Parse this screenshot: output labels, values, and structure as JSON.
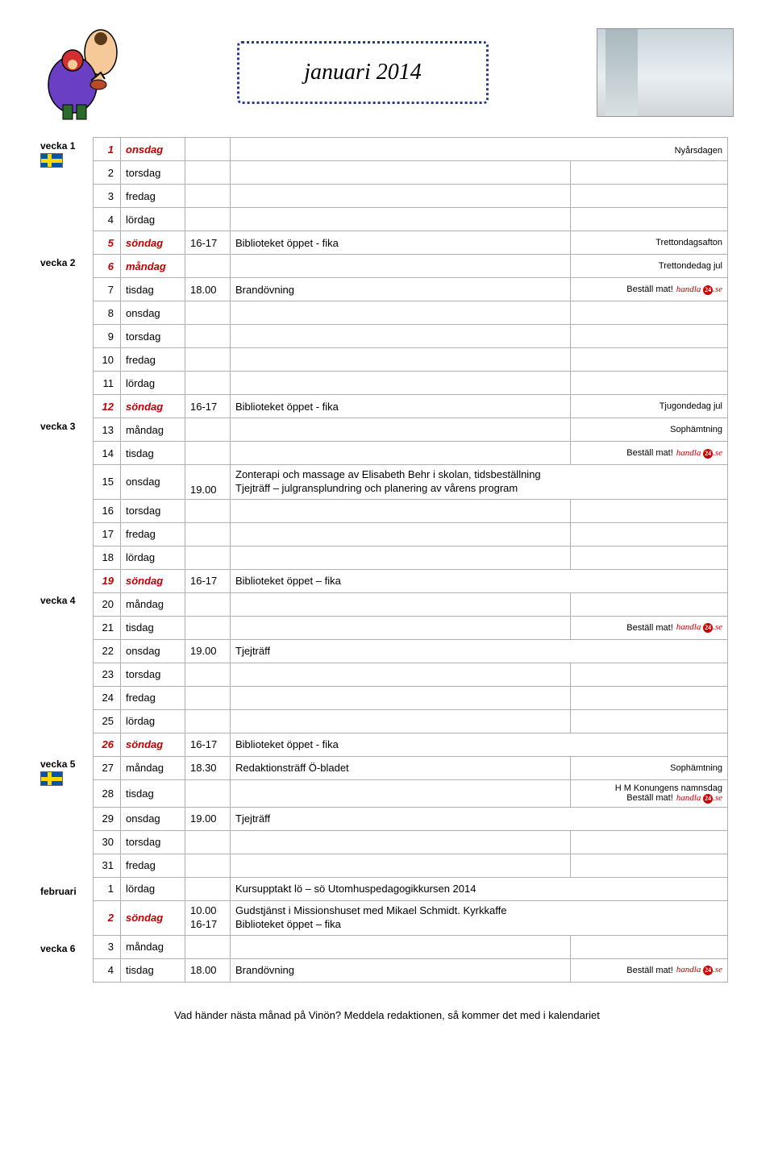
{
  "title": "januari 2014",
  "bestall_label": "Beställ mat!",
  "handla_brand": "handla",
  "handla_suffix": ".se",
  "handla_badge": "24",
  "footer": "Vad händer nästa månad på Vinön? Meddela redaktionen, så kommer det med i kalendariet",
  "weeks": [
    {
      "label": "vecka 1",
      "flag": true,
      "rowspan": 1
    },
    {
      "label": "vecka 2",
      "flag": false,
      "rowspan": 7,
      "startRow": 5
    },
    {
      "label": "vecka 3",
      "flag": false,
      "rowspan": 7,
      "startRow": 12
    },
    {
      "label": "vecka 4",
      "flag": false,
      "rowspan": 7,
      "startRow": 19
    },
    {
      "label": "vecka 5",
      "flag": true,
      "rowspan": 7,
      "startRow": 26
    },
    {
      "label": "februari",
      "flag": false,
      "rowspan": 2,
      "startRow": 31
    },
    {
      "label": "vecka 6",
      "flag": false,
      "rowspan": 2,
      "startRow": 33
    }
  ],
  "rows": [
    {
      "num": "1",
      "day": "onsdag",
      "red": true,
      "italic": true,
      "time": "",
      "event": "",
      "note": "Nyårsdagen",
      "notecolspan": true
    },
    {
      "num": "2",
      "day": "torsdag"
    },
    {
      "num": "3",
      "day": "fredag"
    },
    {
      "num": "4",
      "day": "lördag"
    },
    {
      "num": "5",
      "day": "söndag",
      "red": true,
      "italic": true,
      "time": "16-17",
      "event": "Biblioteket öppet - fika",
      "note": "Trettondagsafton"
    },
    {
      "num": "6",
      "day": "måndag",
      "red": true,
      "italic": true,
      "time": "",
      "event": "",
      "note": "Trettondedag jul"
    },
    {
      "num": "7",
      "day": "tisdag",
      "time": "18.00",
      "event": "Brandövning",
      "bestall": true
    },
    {
      "num": "8",
      "day": "onsdag"
    },
    {
      "num": "9",
      "day": "torsdag"
    },
    {
      "num": "10",
      "day": "fredag"
    },
    {
      "num": "11",
      "day": "lördag"
    },
    {
      "num": "12",
      "day": "söndag",
      "red": true,
      "italic": true,
      "time": "16-17",
      "event": "Biblioteket öppet - fika",
      "note": "Tjugondedag jul"
    },
    {
      "num": "13",
      "day": "måndag",
      "note": "Sophämtning"
    },
    {
      "num": "14",
      "day": "tisdag",
      "bestall": true
    },
    {
      "num": "15",
      "day": "onsdag",
      "time": "19.00",
      "timeValign": "bottom",
      "event": "Zonterapi och massage av Elisabeth Behr i skolan, tidsbeställning\nTjejträff – julgransplundring och planering av vårens program",
      "tall": true,
      "eventColspan": 2
    },
    {
      "num": "16",
      "day": "torsdag"
    },
    {
      "num": "17",
      "day": "fredag"
    },
    {
      "num": "18",
      "day": "lördag"
    },
    {
      "num": "19",
      "day": "söndag",
      "red": true,
      "italic": true,
      "time": "16-17",
      "event": "Biblioteket öppet – fika",
      "eventColspan": 2
    },
    {
      "num": "20",
      "day": "måndag"
    },
    {
      "num": "21",
      "day": "tisdag",
      "bestall": true
    },
    {
      "num": "22",
      "day": "onsdag",
      "time": "19.00",
      "event": "Tjejträff",
      "eventColspan": 2
    },
    {
      "num": "23",
      "day": "torsdag"
    },
    {
      "num": "24",
      "day": "fredag"
    },
    {
      "num": "25",
      "day": "lördag"
    },
    {
      "num": "26",
      "day": "söndag",
      "red": true,
      "italic": true,
      "time": "16-17",
      "event": "Biblioteket öppet - fika",
      "eventColspan": 2
    },
    {
      "num": "27",
      "day": "måndag",
      "time": "18.30",
      "event": "Redaktionsträff Ö-bladet",
      "note": "Sophämtning"
    },
    {
      "num": "28",
      "day": "tisdag",
      "note": "H M Konungens namnsdag",
      "bestall": true,
      "tall": true
    },
    {
      "num": "29",
      "day": "onsdag",
      "time": "19.00",
      "event": "Tjejträff",
      "eventColspan": 2
    },
    {
      "num": "30",
      "day": "torsdag"
    },
    {
      "num": "31",
      "day": "fredag"
    },
    {
      "num": "1",
      "day": "lördag",
      "event": "Kursupptakt lö – sö Utomhuspedagogikkursen 2014",
      "eventColspan": 2
    },
    {
      "num": "2",
      "day": "söndag",
      "red": true,
      "italic": true,
      "time": "10.00\n16-17",
      "event": "Gudstjänst i Missionshuset med Mikael Schmidt. Kyrkkaffe\nBiblioteket öppet – fika",
      "tall": true,
      "eventColspan": 2
    },
    {
      "num": "3",
      "day": "måndag"
    },
    {
      "num": "4",
      "day": "tisdag",
      "time": "18.00",
      "event": "Brandövning",
      "bestall": true
    }
  ]
}
